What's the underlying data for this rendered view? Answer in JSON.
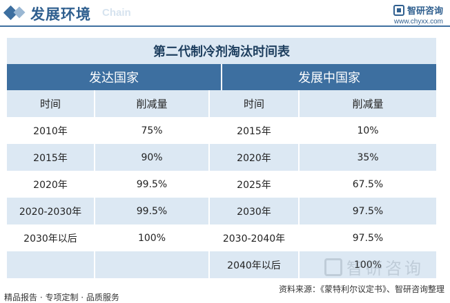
{
  "header": {
    "title": "发展环境",
    "subtitle": "Chain",
    "brand_name": "智研咨询",
    "brand_url": "www.chyxx.com",
    "accent_color": "#3d6fa0"
  },
  "table": {
    "caption": "第二代制冷剂淘汰时间表",
    "groups": [
      "发达国家",
      "发展中国家"
    ],
    "columns": [
      "时间",
      "削减量",
      "时间",
      "削减量"
    ],
    "rows": [
      [
        "2010年",
        "75%",
        "2015年",
        "10%"
      ],
      [
        "2015年",
        "90%",
        "2020年",
        "35%"
      ],
      [
        "2020年",
        "99.5%",
        "2025年",
        "67.5%"
      ],
      [
        "2020-2030年",
        "99.5%",
        "2030年",
        "97.5%"
      ],
      [
        "2030年以后",
        "100%",
        "2030-2040年",
        "97.5%"
      ],
      [
        "",
        "",
        "2040年以后",
        "100%"
      ]
    ]
  },
  "watermark": {
    "text": "智研咨询",
    "icon": "chyxx-logo-icon"
  },
  "footer": {
    "source": "资料来源：《蒙特利尔议定书》、智研咨询整理",
    "services": "精品报告 · 专项定制 · 品质服务"
  }
}
